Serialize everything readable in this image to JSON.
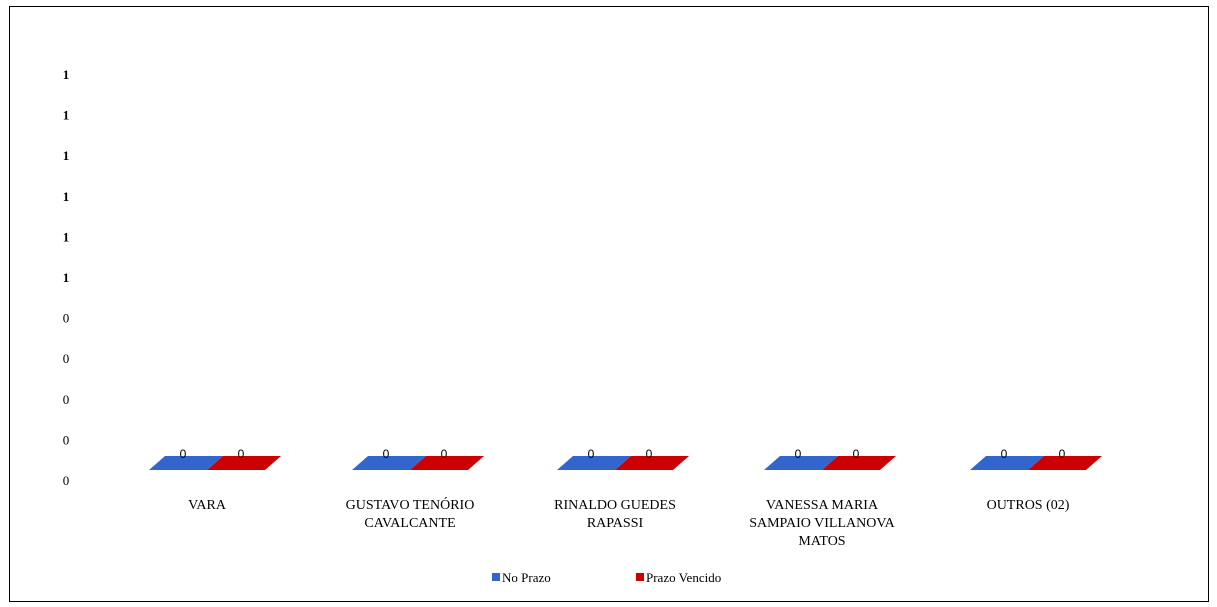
{
  "chart_data": {
    "type": "bar",
    "title": "",
    "xlabel": "",
    "ylabel": "",
    "y_tick_labels": [
      "0",
      "0",
      "0",
      "0",
      "0",
      "1",
      "1",
      "1",
      "1",
      "1",
      "1"
    ],
    "categories": [
      [
        "VARA"
      ],
      [
        "GUSTAVO TENÓRIO",
        "CAVALCANTE"
      ],
      [
        "RINALDO GUEDES",
        "RAPASSI"
      ],
      [
        "VANESSA MARIA",
        "SAMPAIO VILLANOVA",
        "MATOS"
      ],
      [
        "OUTROS (02)"
      ]
    ],
    "series": [
      {
        "name": "No Prazo",
        "color": "#3366cc",
        "values": [
          0,
          0,
          0,
          0,
          0
        ]
      },
      {
        "name": "Prazo Vencido",
        "color": "#cc0000",
        "values": [
          0,
          0,
          0,
          0,
          0
        ]
      }
    ],
    "ylim": [
      0,
      1
    ],
    "grid": false,
    "legend": "bottom",
    "style": "3d-flat"
  }
}
